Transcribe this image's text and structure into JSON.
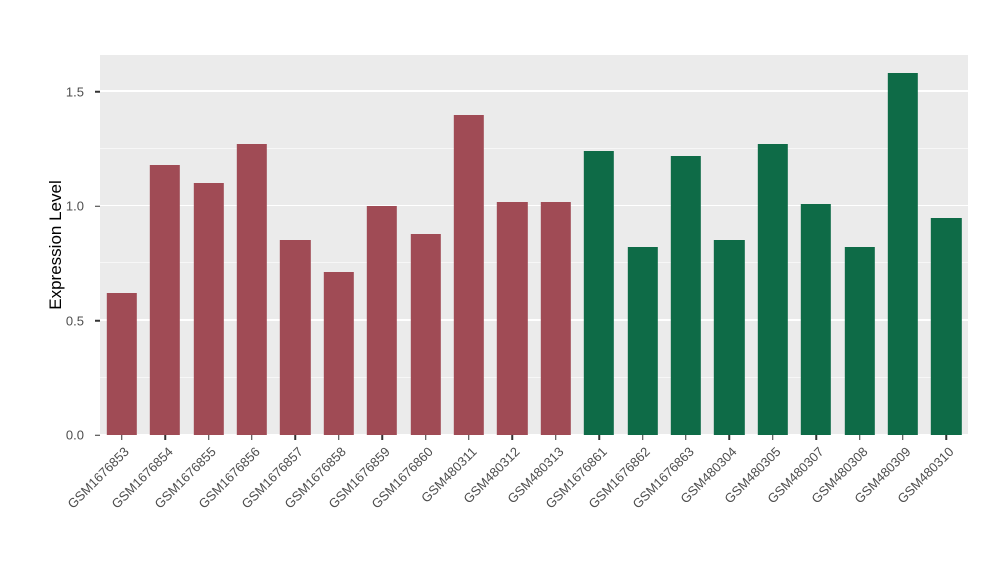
{
  "figure": {
    "background": "#FFFFFF",
    "panel_background": "#EBEBEB",
    "grid_major_color": "#FFFFFF",
    "grid_minor_color": "rgba(255,255,255,0.6)",
    "axis_text_color": "#4D4D4D",
    "axis_title_color": "#000000"
  },
  "chart_data": {
    "type": "bar",
    "title": "",
    "xlabel": "",
    "ylabel": "Expression Level",
    "ylim": [
      0,
      1.66
    ],
    "grid": true,
    "legend_position": "none",
    "y_ticks": [
      {
        "value": 0.0,
        "label": "0.0"
      },
      {
        "value": 0.5,
        "label": "0.5"
      },
      {
        "value": 1.0,
        "label": "1.0"
      },
      {
        "value": 1.5,
        "label": "1.5"
      }
    ],
    "y_minor_ticks": [
      0.25,
      0.75,
      1.25
    ],
    "bar_colors": {
      "group1": "#A04B55",
      "group2": "#0E6B47"
    },
    "bars": [
      {
        "label": "GSM1676853",
        "value": 0.62,
        "group": "group1"
      },
      {
        "label": "GSM1676854",
        "value": 1.18,
        "group": "group1"
      },
      {
        "label": "GSM1676855",
        "value": 1.1,
        "group": "group1"
      },
      {
        "label": "GSM1676856",
        "value": 1.27,
        "group": "group1"
      },
      {
        "label": "GSM1676857",
        "value": 0.85,
        "group": "group1"
      },
      {
        "label": "GSM1676858",
        "value": 0.71,
        "group": "group1"
      },
      {
        "label": "GSM1676859",
        "value": 1.0,
        "group": "group1"
      },
      {
        "label": "GSM1676860",
        "value": 0.88,
        "group": "group1"
      },
      {
        "label": "GSM480311",
        "value": 1.4,
        "group": "group1"
      },
      {
        "label": "GSM480312",
        "value": 1.02,
        "group": "group1"
      },
      {
        "label": "GSM480313",
        "value": 1.02,
        "group": "group1"
      },
      {
        "label": "GSM1676861",
        "value": 1.24,
        "group": "group2"
      },
      {
        "label": "GSM1676862",
        "value": 0.82,
        "group": "group2"
      },
      {
        "label": "GSM1676863",
        "value": 1.22,
        "group": "group2"
      },
      {
        "label": "GSM480304",
        "value": 0.85,
        "group": "group2"
      },
      {
        "label": "GSM480305",
        "value": 1.27,
        "group": "group2"
      },
      {
        "label": "GSM480307",
        "value": 1.01,
        "group": "group2"
      },
      {
        "label": "GSM480308",
        "value": 0.82,
        "group": "group2"
      },
      {
        "label": "GSM480309",
        "value": 1.58,
        "group": "group2"
      },
      {
        "label": "GSM480310",
        "value": 0.95,
        "group": "group2"
      }
    ]
  }
}
